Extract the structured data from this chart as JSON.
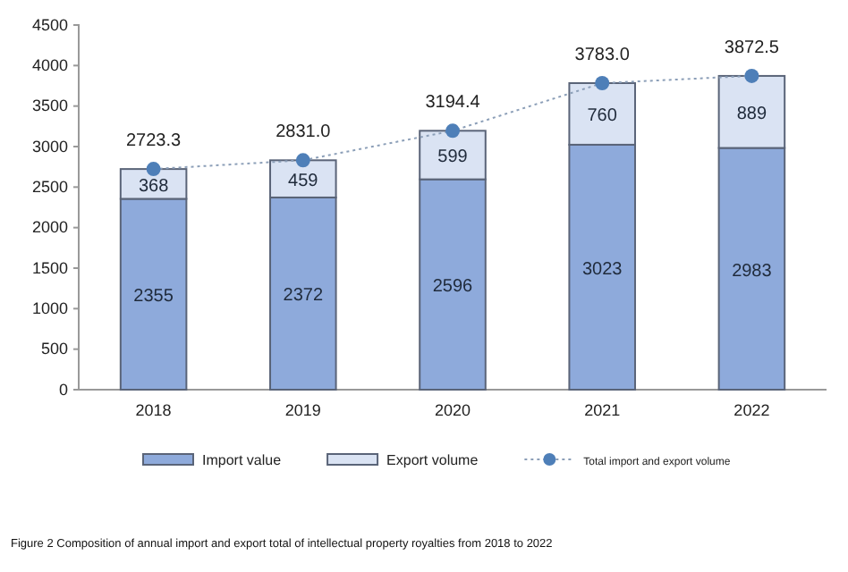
{
  "chart_data": {
    "type": "bar",
    "stacked": true,
    "categories": [
      "2018",
      "2019",
      "2020",
      "2021",
      "2022"
    ],
    "series": [
      {
        "name": "Import value",
        "color": "#8eaadb",
        "values": [
          2355,
          2372,
          2596,
          3023,
          2983
        ],
        "value_labels": [
          "2355",
          "2372",
          "2596",
          "3023",
          "2983"
        ]
      },
      {
        "name": "Export volume",
        "color": "#dae3f3",
        "values": [
          368,
          459,
          599,
          760,
          889
        ],
        "value_labels": [
          "368",
          "459",
          "599",
          "760",
          "889"
        ]
      },
      {
        "name": "Total import and export volume",
        "type": "line",
        "color": "#4e7fb8",
        "line_style": "dotted",
        "marker": "circle",
        "values": [
          2723.3,
          2831.0,
          3194.4,
          3783.0,
          3872.5
        ],
        "value_labels": [
          "2723.3",
          "2831.0",
          "3194.4",
          "3783.0",
          "3872.5"
        ]
      }
    ],
    "ylim": [
      0,
      4500
    ],
    "yticks": [
      0,
      500,
      1000,
      1500,
      2000,
      2500,
      3000,
      3500,
      4000,
      4500
    ],
    "grid": false,
    "legend": "bottom",
    "annotations": [
      "Figure 2 Composition of annual import and export total of intellectual property royalties from 2018 to 2022"
    ]
  }
}
